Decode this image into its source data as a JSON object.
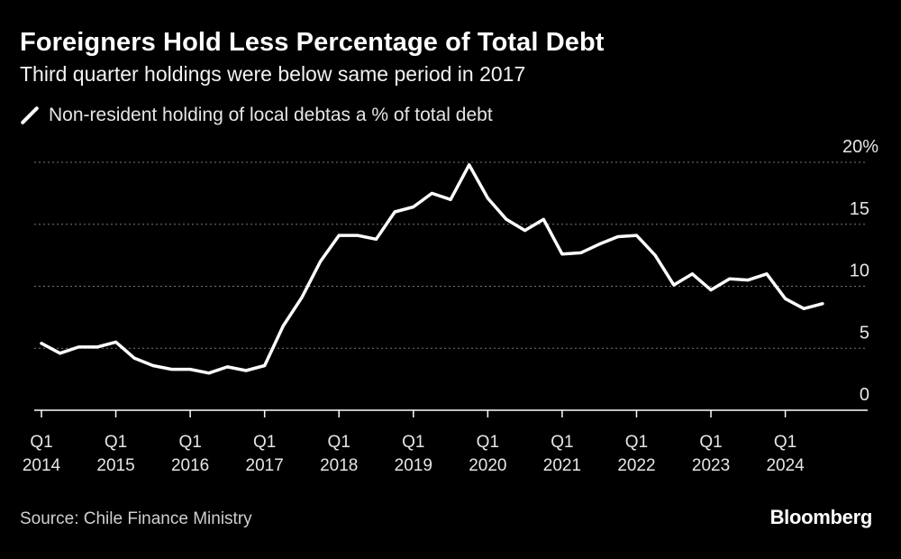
{
  "header": {
    "title": "Foreigners Hold Less Percentage of Total Debt",
    "subtitle": "Third quarter holdings were below same period in 2017"
  },
  "legend": {
    "label": "Non-resident holding of local debtas a % of total debt"
  },
  "footer": {
    "source": "Source: Chile Finance Ministry",
    "brand": "Bloomberg"
  },
  "colors": {
    "background": "#000000",
    "line": "#ffffff",
    "grid": "#777777",
    "axis": "#ffffff"
  },
  "chart_data": {
    "type": "line",
    "title": "Foreigners Hold Less Percentage of Total Debt",
    "subtitle": "Third quarter holdings were below same period in 2017",
    "xlabel": "",
    "ylabel": "",
    "y_unit_suffix": "%",
    "ylim": [
      0,
      20
    ],
    "yticks": [
      0,
      5,
      10,
      15,
      20
    ],
    "grid": "horizontal-dashed",
    "legend_position": "top-left",
    "x_tick_labels": [
      {
        "quarter": "Q1",
        "year": "2014"
      },
      {
        "quarter": "Q1",
        "year": "2015"
      },
      {
        "quarter": "Q1",
        "year": "2016"
      },
      {
        "quarter": "Q1",
        "year": "2017"
      },
      {
        "quarter": "Q1",
        "year": "2018"
      },
      {
        "quarter": "Q1",
        "year": "2019"
      },
      {
        "quarter": "Q1",
        "year": "2020"
      },
      {
        "quarter": "Q1",
        "year": "2021"
      },
      {
        "quarter": "Q1",
        "year": "2022"
      },
      {
        "quarter": "Q1",
        "year": "2023"
      },
      {
        "quarter": "Q1",
        "year": "2024"
      }
    ],
    "series": [
      {
        "name": "Non-resident holding of local debtas a % of total debt",
        "x": [
          "2014-Q1",
          "2014-Q2",
          "2014-Q3",
          "2014-Q4",
          "2015-Q1",
          "2015-Q2",
          "2015-Q3",
          "2015-Q4",
          "2016-Q1",
          "2016-Q2",
          "2016-Q3",
          "2016-Q4",
          "2017-Q1",
          "2017-Q2",
          "2017-Q3",
          "2017-Q4",
          "2018-Q1",
          "2018-Q2",
          "2018-Q3",
          "2018-Q4",
          "2019-Q1",
          "2019-Q2",
          "2019-Q3",
          "2019-Q4",
          "2020-Q1",
          "2020-Q2",
          "2020-Q3",
          "2020-Q4",
          "2021-Q1",
          "2021-Q2",
          "2021-Q3",
          "2021-Q4",
          "2022-Q1",
          "2022-Q2",
          "2022-Q3",
          "2022-Q4",
          "2023-Q1",
          "2023-Q2",
          "2023-Q3",
          "2023-Q4",
          "2024-Q1",
          "2024-Q2",
          "2024-Q3"
        ],
        "values": [
          5.4,
          4.6,
          5.1,
          5.1,
          5.5,
          4.2,
          3.6,
          3.3,
          3.3,
          3.0,
          3.5,
          3.2,
          3.6,
          6.8,
          9.1,
          12.0,
          14.1,
          14.1,
          13.8,
          16.0,
          16.4,
          17.5,
          17.0,
          19.8,
          17.1,
          15.4,
          14.5,
          15.4,
          12.6,
          12.7,
          13.4,
          14.0,
          14.1,
          12.5,
          10.1,
          11.0,
          9.7,
          10.6,
          10.5,
          11.0,
          9.0,
          8.2,
          8.6
        ]
      }
    ]
  }
}
